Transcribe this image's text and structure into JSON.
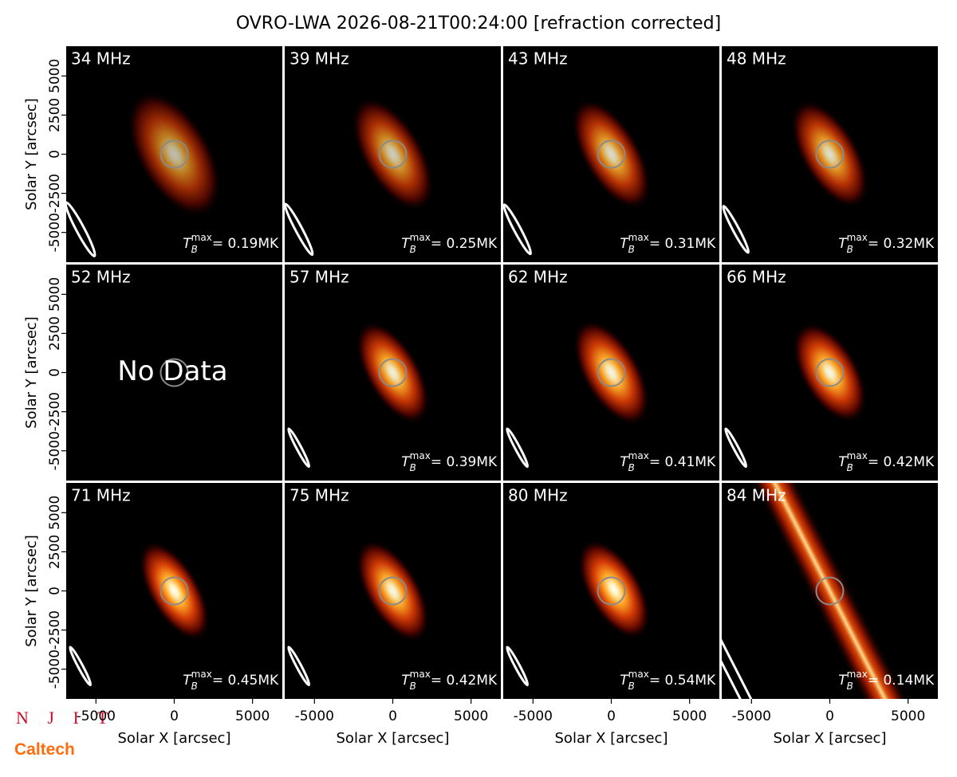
{
  "title": "OVRO-LWA 2026-08-21T00:24:00 [refraction corrected]",
  "logos": [
    "N J I T",
    "Caltech"
  ],
  "tb_symbol": {
    "base": "T",
    "sub": "B",
    "sup": "max"
  },
  "chart_data": [
    {
      "type": "image",
      "title": "34 MHz",
      "ylabel": "Solar Y [arcsec]",
      "xlim": [
        -6900,
        6900
      ],
      "ylim": [
        -6900,
        6900
      ],
      "yticks": [
        -5000,
        -2500,
        0,
        2500,
        5000
      ],
      "values": [
        0.19
      ],
      "value_labels": [
        "= 0.19MK"
      ]
    },
    {
      "type": "image",
      "title": "39 MHz",
      "xlim": [
        -6900,
        6900
      ],
      "ylim": [
        -6900,
        6900
      ],
      "values": [
        0.25
      ],
      "value_labels": [
        "= 0.25MK"
      ]
    },
    {
      "type": "image",
      "title": "43 MHz",
      "xlim": [
        -6900,
        6900
      ],
      "ylim": [
        -6900,
        6900
      ],
      "values": [
        0.31
      ],
      "value_labels": [
        "= 0.31MK"
      ]
    },
    {
      "type": "image",
      "title": "48 MHz",
      "xlim": [
        -6900,
        6900
      ],
      "ylim": [
        -6900,
        6900
      ],
      "values": [
        0.32
      ],
      "value_labels": [
        "= 0.32MK"
      ]
    },
    {
      "type": "image",
      "title": "52 MHz",
      "annotation": "No Data",
      "ylabel": "Solar Y [arcsec]",
      "xlim": [
        -6900,
        6900
      ],
      "ylim": [
        -6900,
        6900
      ],
      "yticks": [
        -5000,
        -2500,
        0,
        2500,
        5000
      ]
    },
    {
      "type": "image",
      "title": "57 MHz",
      "xlim": [
        -6900,
        6900
      ],
      "ylim": [
        -6900,
        6900
      ],
      "values": [
        0.39
      ],
      "value_labels": [
        "= 0.39MK"
      ]
    },
    {
      "type": "image",
      "title": "62 MHz",
      "xlim": [
        -6900,
        6900
      ],
      "ylim": [
        -6900,
        6900
      ],
      "values": [
        0.41
      ],
      "value_labels": [
        "= 0.41MK"
      ]
    },
    {
      "type": "image",
      "title": "66 MHz",
      "xlim": [
        -6900,
        6900
      ],
      "ylim": [
        -6900,
        6900
      ],
      "values": [
        0.42
      ],
      "value_labels": [
        "= 0.42MK"
      ]
    },
    {
      "type": "image",
      "title": "71 MHz",
      "xlabel": "Solar X [arcsec]",
      "ylabel": "Solar Y [arcsec]",
      "xlim": [
        -6900,
        6900
      ],
      "ylim": [
        -6900,
        6900
      ],
      "xticks": [
        -5000,
        0,
        5000
      ],
      "yticks": [
        -5000,
        -2500,
        0,
        2500,
        5000
      ],
      "values": [
        0.45
      ],
      "value_labels": [
        "= 0.45MK"
      ]
    },
    {
      "type": "image",
      "title": "75 MHz",
      "xlabel": "Solar X [arcsec]",
      "xlim": [
        -6900,
        6900
      ],
      "ylim": [
        -6900,
        6900
      ],
      "xticks": [
        -5000,
        0,
        5000
      ],
      "values": [
        0.42
      ],
      "value_labels": [
        "= 0.42MK"
      ]
    },
    {
      "type": "image",
      "title": "80 MHz",
      "xlabel": "Solar X [arcsec]",
      "xlim": [
        -6900,
        6900
      ],
      "ylim": [
        -6900,
        6900
      ],
      "xticks": [
        -5000,
        0,
        5000
      ],
      "values": [
        0.54
      ],
      "value_labels": [
        "= 0.54MK"
      ]
    },
    {
      "type": "image",
      "title": "84 MHz",
      "xlabel": "Solar X [arcsec]",
      "xlim": [
        -6900,
        6900
      ],
      "ylim": [
        -6900,
        6900
      ],
      "xticks": [
        -5000,
        0,
        5000
      ],
      "values": [
        0.14
      ],
      "value_labels": [
        "= 0.14MK"
      ]
    }
  ]
}
